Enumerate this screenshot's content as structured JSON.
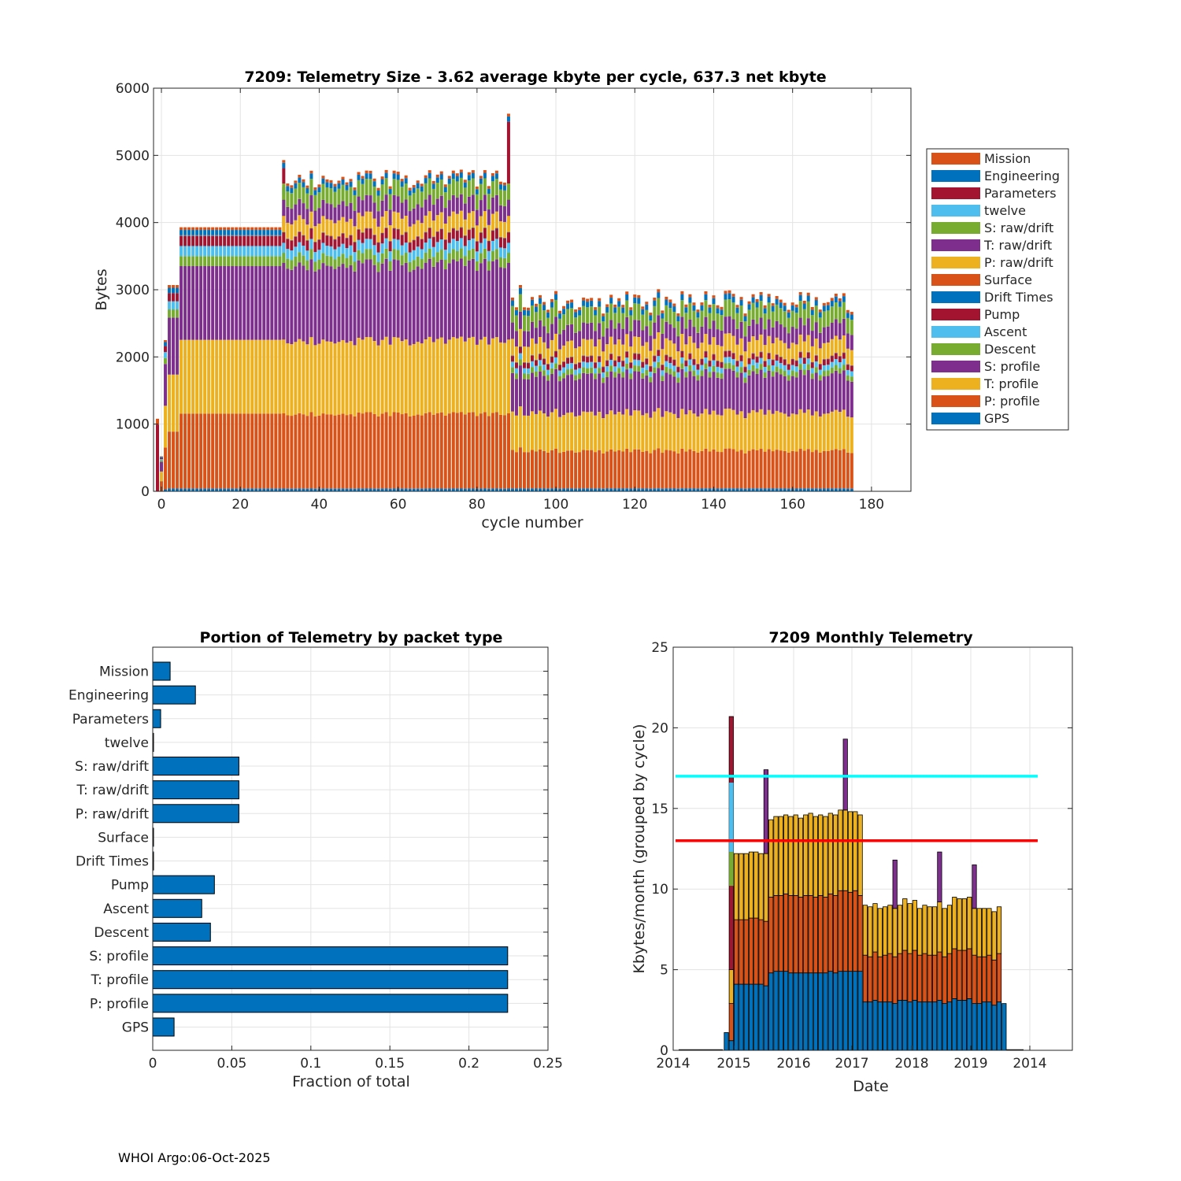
{
  "footer": "WHOI Argo:06-Oct-2025",
  "chart_data": [
    {
      "type": "bar",
      "stacked": true,
      "title": "7209: Telemetry Size - 3.62 average kbyte per cycle,  637.3 net kbyte",
      "xlabel": "cycle number",
      "ylabel": "Bytes",
      "xlim": [
        -2,
        190
      ],
      "ylim": [
        0,
        6000
      ],
      "xticks": [
        0,
        20,
        40,
        60,
        80,
        100,
        120,
        140,
        160,
        180
      ],
      "yticks": [
        0,
        1000,
        2000,
        3000,
        4000,
        5000,
        6000
      ],
      "legend_position": "right-outside",
      "legend": [
        "Mission",
        "Engineering",
        "Parameters",
        "twelve",
        "S: raw/drift",
        "T: raw/drift",
        "P: raw/drift",
        "Surface",
        "Drift Times",
        "Pump",
        "Ascent",
        "Descent",
        "S: profile",
        "T: profile",
        "P: profile",
        "GPS"
      ],
      "legend_colors": [
        "#D95319",
        "#0072BD",
        "#A2142F",
        "#4DBEEE",
        "#77AC30",
        "#7E2F8E",
        "#EDB120",
        "#D95319",
        "#0072BD",
        "#A2142F",
        "#4DBEEE",
        "#77AC30",
        "#7E2F8E",
        "#EDB120",
        "#D95319",
        "#0072BD"
      ],
      "stack_order_bottom_to_top": [
        "GPS",
        "P: profile",
        "T: profile",
        "S: profile",
        "Descent",
        "Ascent",
        "Pump",
        "Drift Times",
        "Surface",
        "P: raw/drift",
        "T: raw/drift",
        "S: raw/drift",
        "twelve",
        "Parameters",
        "Engineering",
        "Mission"
      ],
      "segments": [
        {
          "cycles": [
            5,
            30
          ],
          "values": {
            "GPS": 40,
            "P: profile": 1120,
            "T: profile": 1100,
            "S: profile": 1100,
            "Descent": 150,
            "Ascent": 150,
            "Pump": 150,
            "Drift Times": 5,
            "Surface": 5,
            "P: raw/drift": 0,
            "T: raw/drift": 0,
            "S: raw/drift": 0,
            "twelve": 0,
            "Parameters": 0,
            "Engineering": 80,
            "Mission": 40
          },
          "approx_total": 3930
        },
        {
          "cycles": [
            31,
            88
          ],
          "values": {
            "GPS": 40,
            "P: profile": 1120,
            "T: profile": 1100,
            "S: profile": 1140,
            "Descent": 150,
            "Ascent": 150,
            "Pump": 150,
            "Drift Times": 5,
            "Surface": 5,
            "P: raw/drift": 240,
            "T: raw/drift": 240,
            "S: raw/drift": 240,
            "twelve": 0,
            "Parameters": 0,
            "Engineering": 80,
            "Mission": 40
          },
          "approx_total": 4650
        },
        {
          "cycles": [
            89,
            175
          ],
          "values": {
            "GPS": 40,
            "P: profile": 540,
            "T: profile": 540,
            "S: profile": 540,
            "Descent": 80,
            "Ascent": 80,
            "Pump": 80,
            "Drift Times": 5,
            "Surface": 5,
            "P: raw/drift": 230,
            "T: raw/drift": 230,
            "S: raw/drift": 230,
            "twelve": 0,
            "Parameters": 0,
            "Engineering": 80,
            "Mission": 40
          },
          "approx_total": 2850
        }
      ],
      "notable_cycles": [
        {
          "cycle": -1,
          "total": 1080
        },
        {
          "cycle": 0,
          "total": 520
        },
        {
          "cycle": 1,
          "total": 2250
        },
        {
          "cycle": 2,
          "total": 3070
        },
        {
          "cycle": 3,
          "total": 3070
        },
        {
          "cycle": 4,
          "total": 3070
        },
        {
          "cycle": 31,
          "total": 4930
        },
        {
          "cycle": 88,
          "total": 5620
        }
      ]
    },
    {
      "type": "bar",
      "orientation": "horizontal",
      "title": "Portion of Telemetry by packet type",
      "xlabel": "Fraction of total",
      "ylabel": "",
      "xlim": [
        0,
        0.25
      ],
      "xticks": [
        0,
        0.05,
        0.1,
        0.15,
        0.2,
        0.25
      ],
      "xtick_labels": [
        "0",
        "0.05",
        "0.1",
        "0.15",
        "0.2",
        "0.25"
      ],
      "categories": [
        "Mission",
        "Engineering",
        "Parameters",
        "twelve",
        "S: raw/drift",
        "T: raw/drift",
        "P: raw/drift",
        "Surface",
        "Drift Times",
        "Pump",
        "Ascent",
        "Descent",
        "S: profile",
        "T: profile",
        "P: profile",
        "GPS"
      ],
      "values": [
        0.011,
        0.027,
        0.005,
        0.0005,
        0.0545,
        0.0545,
        0.0545,
        0.0005,
        0.0005,
        0.039,
        0.031,
        0.0365,
        0.2245,
        0.2245,
        0.2245,
        0.0135
      ],
      "color": "#0072BD"
    },
    {
      "type": "bar",
      "stacked": true,
      "title": "7209 Monthly Telemetry",
      "xlabel": "Date",
      "ylabel": "Kbytes/month (grouped by cycle)",
      "ylim": [
        0,
        25
      ],
      "yticks": [
        0,
        5,
        10,
        15,
        20,
        25
      ],
      "xtick_labels": [
        "2014",
        "2015",
        "2016",
        "2017",
        "2018",
        "2019",
        "2014"
      ],
      "reference_lines": [
        {
          "y": 17,
          "color": "#00FFFF"
        },
        {
          "y": 13,
          "color": "#FF0000"
        }
      ],
      "series_colors": {
        "GPS/P": "#0072BD",
        "T": "#D95319",
        "S": "#EDB120",
        "other": "#7E2F8E"
      },
      "months": [
        {
          "label": "2014-11",
          "total": 1.1,
          "blue": 1.1,
          "orange": 0,
          "yellow": 0
        },
        {
          "label": "2014-12",
          "total": 20.7,
          "blue": 0.6,
          "orange": 2.3,
          "yellow": 2.1
        },
        {
          "label": "2015-01",
          "total": 12.2,
          "blue": 4.1,
          "orange": 4.0,
          "yellow": 4.1
        },
        {
          "label": "2015-02",
          "total": 12.2,
          "blue": 4.1,
          "orange": 4.0,
          "yellow": 4.1
        },
        {
          "label": "2015-03",
          "total": 12.2,
          "blue": 4.1,
          "orange": 4.0,
          "yellow": 4.1
        },
        {
          "label": "2015-04",
          "total": 12.3,
          "blue": 4.1,
          "orange": 4.1,
          "yellow": 4.1
        },
        {
          "label": "2015-05",
          "total": 12.3,
          "blue": 4.1,
          "orange": 4.1,
          "yellow": 4.1
        },
        {
          "label": "2015-06",
          "total": 12.2,
          "blue": 4.1,
          "orange": 4.0,
          "yellow": 4.1
        },
        {
          "label": "2015-07",
          "total": 17.4,
          "blue": 4.0,
          "orange": 4.0,
          "yellow": 4.2
        },
        {
          "label": "2015-08",
          "total": 14.3,
          "blue": 4.8,
          "orange": 4.7,
          "yellow": 4.8
        },
        {
          "label": "2015-09",
          "total": 14.5,
          "blue": 4.9,
          "orange": 4.7,
          "yellow": 4.9
        },
        {
          "label": "2015-10",
          "total": 14.5,
          "blue": 4.9,
          "orange": 4.7,
          "yellow": 4.9
        },
        {
          "label": "2015-11",
          "total": 14.6,
          "blue": 4.9,
          "orange": 4.8,
          "yellow": 4.9
        },
        {
          "label": "2015-12",
          "total": 14.5,
          "blue": 4.8,
          "orange": 4.8,
          "yellow": 4.9
        },
        {
          "label": "2016-01",
          "total": 14.6,
          "blue": 4.8,
          "orange": 4.8,
          "yellow": 5.0
        },
        {
          "label": "2016-02",
          "total": 14.4,
          "blue": 4.8,
          "orange": 4.7,
          "yellow": 4.9
        },
        {
          "label": "2016-03",
          "total": 14.6,
          "blue": 4.8,
          "orange": 4.8,
          "yellow": 5.0
        },
        {
          "label": "2016-04",
          "total": 14.7,
          "blue": 4.8,
          "orange": 4.8,
          "yellow": 5.1
        },
        {
          "label": "2016-05",
          "total": 14.5,
          "blue": 4.8,
          "orange": 4.7,
          "yellow": 5.0
        },
        {
          "label": "2016-06",
          "total": 14.6,
          "blue": 4.8,
          "orange": 4.8,
          "yellow": 5.0
        },
        {
          "label": "2016-07",
          "total": 14.5,
          "blue": 4.8,
          "orange": 4.7,
          "yellow": 5.0
        },
        {
          "label": "2016-08",
          "total": 14.7,
          "blue": 4.9,
          "orange": 4.8,
          "yellow": 5.0
        },
        {
          "label": "2016-09",
          "total": 14.6,
          "blue": 4.8,
          "orange": 4.8,
          "yellow": 5.0
        },
        {
          "label": "2016-10",
          "total": 14.9,
          "blue": 4.9,
          "orange": 5.0,
          "yellow": 5.0
        },
        {
          "label": "2016-11",
          "total": 19.3,
          "blue": 4.9,
          "orange": 5.0,
          "yellow": 5.0
        },
        {
          "label": "2016-12",
          "total": 14.8,
          "blue": 4.9,
          "orange": 4.9,
          "yellow": 5.0
        },
        {
          "label": "2017-01",
          "total": 14.8,
          "blue": 4.9,
          "orange": 5.0,
          "yellow": 4.9
        },
        {
          "label": "2017-02",
          "total": 14.6,
          "blue": 4.9,
          "orange": 4.7,
          "yellow": 5.0
        },
        {
          "label": "2017-03",
          "total": 9.0,
          "blue": 3.0,
          "orange": 2.9,
          "yellow": 3.1
        },
        {
          "label": "2017-04",
          "total": 8.9,
          "blue": 3.0,
          "orange": 2.8,
          "yellow": 3.1
        },
        {
          "label": "2017-05",
          "total": 9.1,
          "blue": 3.1,
          "orange": 3.0,
          "yellow": 3.0
        },
        {
          "label": "2017-06",
          "total": 8.8,
          "blue": 3.0,
          "orange": 2.8,
          "yellow": 3.0
        },
        {
          "label": "2017-07",
          "total": 8.9,
          "blue": 3.0,
          "orange": 2.9,
          "yellow": 3.0
        },
        {
          "label": "2017-08",
          "total": 9.0,
          "blue": 3.0,
          "orange": 3.0,
          "yellow": 3.0
        },
        {
          "label": "2017-09",
          "total": 11.8,
          "blue": 2.9,
          "orange": 2.9,
          "yellow": 3.0
        },
        {
          "label": "2017-10",
          "total": 9.0,
          "blue": 3.1,
          "orange": 2.9,
          "yellow": 3.0
        },
        {
          "label": "2017-11",
          "total": 9.4,
          "blue": 3.1,
          "orange": 3.1,
          "yellow": 3.2
        },
        {
          "label": "2017-12",
          "total": 9.1,
          "blue": 3.0,
          "orange": 3.0,
          "yellow": 3.1
        },
        {
          "label": "2018-01",
          "total": 9.3,
          "blue": 3.1,
          "orange": 3.1,
          "yellow": 3.1
        },
        {
          "label": "2018-02",
          "total": 8.8,
          "blue": 3.0,
          "orange": 2.9,
          "yellow": 2.9
        },
        {
          "label": "2018-03",
          "total": 9.0,
          "blue": 3.0,
          "orange": 3.0,
          "yellow": 3.0
        },
        {
          "label": "2018-04",
          "total": 8.9,
          "blue": 3.0,
          "orange": 2.9,
          "yellow": 3.0
        },
        {
          "label": "2018-05",
          "total": 8.9,
          "blue": 3.0,
          "orange": 2.9,
          "yellow": 3.0
        },
        {
          "label": "2018-06",
          "total": 12.3,
          "blue": 3.1,
          "orange": 3.0,
          "yellow": 3.1
        },
        {
          "label": "2018-07",
          "total": 8.8,
          "blue": 2.9,
          "orange": 2.9,
          "yellow": 3.0
        },
        {
          "label": "2018-08",
          "total": 9.0,
          "blue": 3.0,
          "orange": 3.0,
          "yellow": 3.0
        },
        {
          "label": "2018-09",
          "total": 9.5,
          "blue": 3.2,
          "orange": 3.1,
          "yellow": 3.2
        },
        {
          "label": "2018-10",
          "total": 9.4,
          "blue": 3.1,
          "orange": 3.1,
          "yellow": 3.2
        },
        {
          "label": "2018-11",
          "total": 9.4,
          "blue": 3.1,
          "orange": 3.1,
          "yellow": 3.2
        },
        {
          "label": "2018-12",
          "total": 9.5,
          "blue": 3.2,
          "orange": 3.1,
          "yellow": 3.2
        },
        {
          "label": "2019-01",
          "total": 11.5,
          "blue": 2.9,
          "orange": 3.0,
          "yellow": 2.9
        },
        {
          "label": "2019-02",
          "total": 8.8,
          "blue": 2.9,
          "orange": 2.9,
          "yellow": 3.0
        },
        {
          "label": "2019-03",
          "total": 8.8,
          "blue": 3.0,
          "orange": 2.8,
          "yellow": 3.0
        },
        {
          "label": "2019-04",
          "total": 8.8,
          "blue": 3.0,
          "orange": 2.9,
          "yellow": 2.9
        },
        {
          "label": "2019-05",
          "total": 8.6,
          "blue": 2.8,
          "orange": 2.8,
          "yellow": 3.0
        },
        {
          "label": "2019-06",
          "total": 8.9,
          "blue": 3.0,
          "orange": 3.0,
          "yellow": 2.9
        },
        {
          "label": "2019-07",
          "total": 2.9,
          "blue": 2.9,
          "orange": 0,
          "yellow": 0
        }
      ]
    }
  ]
}
